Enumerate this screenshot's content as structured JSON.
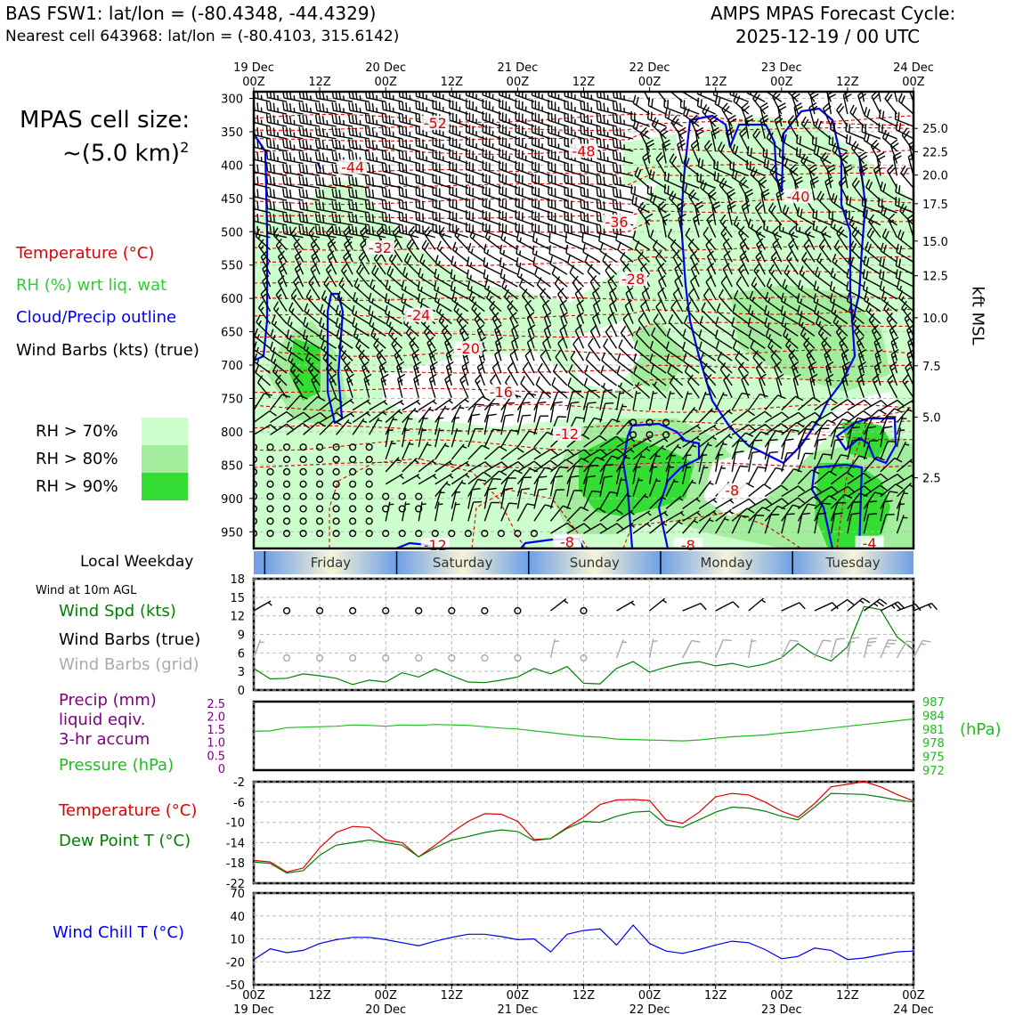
{
  "header": {
    "title_left": "BAS FSW1: lat/lon = (-80.4348, -44.4329)",
    "subtitle_left": "Nearest cell 643968: lat/lon = (-80.4103, 315.6142)",
    "title_right_1": "AMPS MPAS Forecast Cycle:",
    "title_right_2": "2025-12-19 / 00 UTC"
  },
  "legend": {
    "cell_size_1": "MPAS cell size:",
    "cell_size_2": "~(5.0 km)",
    "cell_size_sup": "2",
    "temperature": "Temperature (°C)",
    "rh": "RH (%) wrt liq. wat",
    "cloud": "Cloud/Precip outline",
    "barbs": "Wind Barbs (kts) (true)",
    "rh70": "RH > 70%",
    "rh80": "RH > 80%",
    "rh90": "RH > 90%",
    "colors": {
      "rh70": "#ccffcc",
      "rh80": "#a2ee9c",
      "rh90": "#33dd33",
      "temp": "#e00000",
      "cloud": "#0000ee",
      "rh_text": "#33cc33"
    }
  },
  "side_labels": {
    "local_weekday": "Local Weekday",
    "wind_at_10m": "Wind at 10m AGL",
    "wind_spd": "Wind Spd (kts)",
    "wind_barbs_true": "Wind Barbs (true)",
    "wind_barbs_grid": "Wind Barbs (grid)",
    "precip_1": "Precip (mm)",
    "precip_2": "liquid eqiv.",
    "precip_3": "3-hr accum",
    "pressure": "Pressure (hPa)",
    "pressure_unit": "(hPa)",
    "temp": "Temperature (°C)",
    "dew": "Dew Point T (°C)",
    "wind_chill": "Wind Chill T (°C)",
    "kft": "kft MSL"
  },
  "chart_data": {
    "type": "meteogram",
    "time_ticks": [
      {
        "top": "00Z",
        "bottom": "19 Dec"
      },
      {
        "top": "12Z",
        "bottom": ""
      },
      {
        "top": "00Z",
        "bottom": "20 Dec"
      },
      {
        "top": "12Z",
        "bottom": ""
      },
      {
        "top": "00Z",
        "bottom": "21 Dec"
      },
      {
        "top": "12Z",
        "bottom": ""
      },
      {
        "top": "00Z",
        "bottom": "22 Dec"
      },
      {
        "top": "12Z",
        "bottom": ""
      },
      {
        "top": "00Z",
        "bottom": "23 Dec"
      },
      {
        "top": "12Z",
        "bottom": ""
      },
      {
        "top": "00Z",
        "bottom": "24 Dec"
      }
    ],
    "top_tick_dates": [
      "19 Dec",
      "20 Dec",
      "21 Dec",
      "22 Dec",
      "23 Dec",
      "24 Dec"
    ],
    "time_range_hours": [
      0,
      120
    ],
    "weekdays": [
      "Friday",
      "Saturday",
      "Sunday",
      "Monday",
      "Tuesday"
    ],
    "weekday_boundaries_h": [
      2,
      26,
      50,
      74,
      98
    ],
    "cross_section": {
      "pressure_levels": [
        300,
        350,
        400,
        450,
        500,
        550,
        600,
        650,
        700,
        750,
        800,
        850,
        900,
        950
      ],
      "pressure_range": [
        290,
        975
      ],
      "kft_ticks": [
        {
          "label": "25.0",
          "p": 345
        },
        {
          "label": "22.5",
          "p": 380
        },
        {
          "label": "20.0",
          "p": 415
        },
        {
          "label": "17.5",
          "p": 458
        },
        {
          "label": "15.0",
          "p": 514
        },
        {
          "label": "12.5",
          "p": 566
        },
        {
          "label": "10.0",
          "p": 629
        },
        {
          "label": "7.5",
          "p": 701
        },
        {
          "label": "5.0",
          "p": 778
        },
        {
          "label": "2.5",
          "p": 869
        }
      ],
      "isotherm_labels": [
        {
          "v": "-52",
          "h": 33,
          "p": 342
        },
        {
          "v": "-48",
          "h": 60,
          "p": 384
        },
        {
          "v": "-44",
          "h": 18,
          "p": 408
        },
        {
          "v": "-40",
          "h": 99,
          "p": 452
        },
        {
          "v": "-36",
          "h": 66,
          "p": 490
        },
        {
          "v": "-32",
          "h": 23,
          "p": 529
        },
        {
          "v": "-28",
          "h": 69,
          "p": 576
        },
        {
          "v": "-24",
          "h": 30,
          "p": 630
        },
        {
          "v": "-20",
          "h": 39,
          "p": 680
        },
        {
          "v": "-16",
          "h": 45,
          "p": 745
        },
        {
          "v": "-12",
          "h": 57,
          "p": 808
        },
        {
          "v": "-8",
          "h": 87,
          "p": 893
        },
        {
          "v": "-8",
          "h": 79,
          "p": 975
        },
        {
          "v": "-8",
          "h": 57,
          "p": 970
        },
        {
          "v": "-12",
          "h": 33,
          "p": 975
        },
        {
          "v": "-4",
          "h": 112,
          "p": 972
        }
      ]
    },
    "wind_speed": {
      "ylim": [
        0,
        18
      ],
      "yticks": [
        0,
        3,
        6,
        9,
        12,
        15,
        18
      ],
      "hours": [
        0,
        3,
        6,
        9,
        12,
        15,
        18,
        21,
        24,
        27,
        30,
        33,
        36,
        39,
        42,
        45,
        48,
        51,
        54,
        57,
        60,
        63,
        66,
        69,
        72,
        75,
        78,
        81,
        84,
        87,
        90,
        93,
        96,
        99,
        102,
        105,
        108,
        111,
        114,
        117,
        120
      ],
      "values": [
        3.5,
        1.8,
        1.9,
        2.6,
        2.3,
        1.9,
        0.9,
        1.6,
        1.3,
        2.8,
        2.1,
        3.4,
        2.3,
        1.3,
        1.2,
        1.6,
        2.1,
        3.5,
        2.6,
        3.8,
        1.1,
        1.0,
        3.5,
        4.6,
        2.9,
        3.7,
        4.3,
        4.6,
        3.9,
        4.3,
        3.7,
        4.2,
        5.2,
        7.5,
        5.7,
        4.7,
        7.0,
        13.5,
        13.0,
        8.6,
        6.5
      ]
    },
    "precip_pressure": {
      "precip_ticks": [
        "0",
        "0.5",
        "1.0",
        "1.5",
        "2.0",
        "2.5"
      ],
      "pressure_ticks": [
        "972",
        "975",
        "978",
        "981",
        "984",
        "987"
      ],
      "pressure_range": [
        972,
        987
      ],
      "hours": [
        0,
        3,
        6,
        9,
        12,
        15,
        18,
        21,
        24,
        27,
        30,
        33,
        36,
        39,
        42,
        45,
        48,
        51,
        54,
        57,
        60,
        63,
        66,
        69,
        72,
        75,
        78,
        81,
        84,
        87,
        90,
        93,
        96,
        99,
        102,
        105,
        108,
        111,
        114,
        117,
        120
      ],
      "pressure": [
        980.5,
        980.6,
        981.3,
        981.4,
        981.5,
        981.6,
        981.9,
        981.8,
        981.6,
        981.9,
        981.8,
        982.0,
        981.9,
        981.8,
        981.5,
        981.2,
        981.0,
        980.6,
        980.2,
        979.8,
        979.4,
        979.2,
        978.8,
        978.7,
        978.6,
        978.5,
        978.4,
        978.6,
        979.0,
        979.3,
        979.5,
        979.7,
        980.1,
        980.4,
        980.8,
        981.2,
        981.6,
        982.0,
        982.4,
        982.8,
        983.2
      ]
    },
    "temperature": {
      "ylim": [
        -22,
        -2
      ],
      "yticks": [
        -22,
        -18,
        -14,
        -10,
        -6,
        -2
      ],
      "hours": [
        0,
        3,
        6,
        9,
        12,
        15,
        18,
        21,
        24,
        27,
        30,
        33,
        36,
        39,
        42,
        45,
        48,
        51,
        54,
        57,
        60,
        63,
        66,
        69,
        72,
        75,
        78,
        81,
        84,
        87,
        90,
        93,
        96,
        99,
        102,
        105,
        108,
        111,
        114,
        117,
        120
      ],
      "temp": [
        -17.5,
        -17.8,
        -19.8,
        -19.0,
        -15.0,
        -12.0,
        -10.8,
        -11.0,
        -13.5,
        -14.0,
        -16.8,
        -14.5,
        -12.0,
        -9.8,
        -8.3,
        -8.4,
        -9.8,
        -13.4,
        -13.2,
        -11.0,
        -9.0,
        -6.5,
        -5.6,
        -5.5,
        -5.7,
        -9.5,
        -10.2,
        -8.0,
        -5.0,
        -4.3,
        -4.6,
        -6.0,
        -7.8,
        -9.0,
        -6.3,
        -3.0,
        -2.5,
        -2.0,
        -3.0,
        -4.5,
        -5.8
      ],
      "dew": [
        -17.8,
        -18.1,
        -20.0,
        -19.5,
        -16.5,
        -14.5,
        -14.0,
        -13.5,
        -14.0,
        -14.5,
        -16.8,
        -15.0,
        -13.5,
        -12.8,
        -12.0,
        -11.5,
        -11.8,
        -13.6,
        -13.2,
        -11.2,
        -9.8,
        -10.0,
        -8.8,
        -8.0,
        -7.8,
        -10.5,
        -11.0,
        -9.5,
        -8.0,
        -7.0,
        -7.2,
        -7.8,
        -8.8,
        -9.5,
        -7.0,
        -4.3,
        -4.4,
        -4.5,
        -5.0,
        -5.6,
        -6.0
      ]
    },
    "wind_chill": {
      "ylim": [
        -50,
        70
      ],
      "yticks": [
        -50,
        -20,
        10,
        40,
        70
      ],
      "hours": [
        0,
        3,
        6,
        9,
        12,
        15,
        18,
        21,
        24,
        27,
        30,
        33,
        36,
        39,
        42,
        45,
        48,
        51,
        54,
        57,
        60,
        63,
        66,
        69,
        72,
        75,
        78,
        81,
        84,
        87,
        90,
        93,
        96,
        99,
        102,
        105,
        108,
        111,
        114,
        117,
        120
      ],
      "values": [
        -17,
        -3,
        -8,
        -5,
        4,
        9,
        12,
        12,
        9,
        5,
        1,
        7,
        12,
        16,
        16,
        13,
        9,
        10,
        -7,
        16,
        21,
        23,
        2,
        28,
        4,
        -6,
        -9,
        -4,
        2,
        7,
        5,
        -4,
        -16,
        -13,
        -2,
        -5,
        -17,
        -15,
        -11,
        -7,
        -6
      ]
    }
  }
}
